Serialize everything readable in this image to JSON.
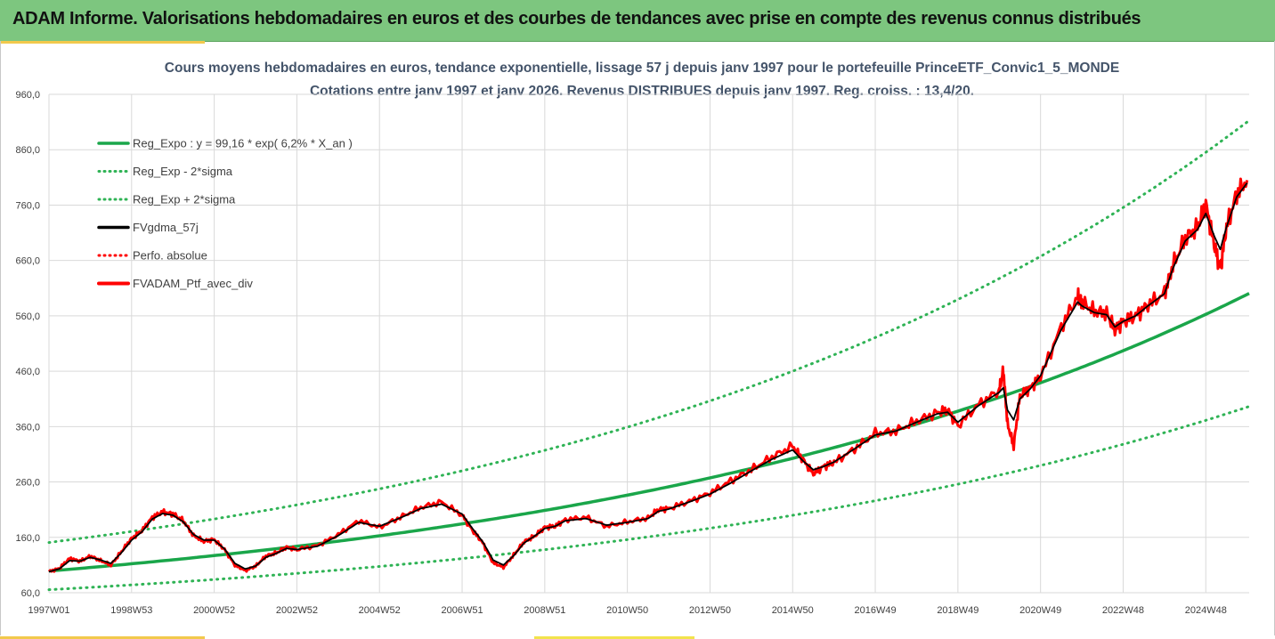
{
  "header": {
    "title": "ADAM Informe. Valorisations hebdomadaires en euros et des courbes de tendances avec prise en compte des revenus connus distribués"
  },
  "colors": {
    "banner": "#7dc67f",
    "trend": "#1aa64a",
    "sigma": "#2fb355",
    "smoothed": "#000000",
    "portfolio": "#ff0000",
    "grid": "#d9d9d9"
  },
  "chart_data": {
    "type": "line",
    "title": "Cours moyens hebdomadaires  en euros, tendance exponentielle, lissage 57 j depuis janv 1997 pour le portefeuille PrinceETF_Convic1_5_MONDE",
    "subtitle": "Cotations entre janv 1997 et janv 2026. Revenus DISTRIBUES depuis janv 1997. Reg. croiss. : 13,4/20.",
    "xlabel": "",
    "ylabel": "",
    "ylim": [
      60,
      960
    ],
    "yticks": [
      "60,0",
      "160,0",
      "260,0",
      "360,0",
      "460,0",
      "560,0",
      "660,0",
      "760,0",
      "860,0",
      "960,0"
    ],
    "ytick_values": [
      60,
      160,
      260,
      360,
      460,
      560,
      660,
      760,
      860,
      960
    ],
    "xlim": [
      1997.0,
      2026.05
    ],
    "xticks": [
      "1997W01",
      "1998W53",
      "2000W52",
      "2002W52",
      "2004W52",
      "2006W51",
      "2008W51",
      "2010W50",
      "2012W50",
      "2014W50",
      "2016W49",
      "2018W49",
      "2020W49",
      "2022W48",
      "2024W48"
    ],
    "xtick_values": [
      1997.0,
      1999.0,
      2001.0,
      2003.0,
      2005.0,
      2007.0,
      2009.0,
      2011.0,
      2013.0,
      2015.0,
      2017.0,
      2019.0,
      2021.0,
      2023.0,
      2025.0
    ],
    "grid": true,
    "legend_position": "top-left",
    "legend": [
      "Reg_Expo : y = 99,16 * exp( 6,2% *  X_an )",
      "Reg_Exp - 2*sigma",
      "Reg_Exp + 2*sigma",
      "FVgdma_57j",
      "Perfo. absolue",
      "FVADAM_Ptf_avec_div"
    ],
    "regression": {
      "a": 99.16,
      "rate": 0.062,
      "lower_factor": 0.66,
      "upper_factor": 1.52
    },
    "series": [
      {
        "name": "FVADAM_Ptf_avec_div",
        "x": [
          1997.0,
          1997.25,
          1997.5,
          1997.75,
          1998.0,
          1998.25,
          1998.5,
          1998.75,
          1999.0,
          1999.25,
          1999.5,
          1999.75,
          2000.0,
          2000.25,
          2000.5,
          2000.75,
          2001.0,
          2001.25,
          2001.5,
          2001.75,
          2002.0,
          2002.25,
          2002.5,
          2002.75,
          2003.0,
          2003.5,
          2004.0,
          2004.5,
          2005.0,
          2005.5,
          2006.0,
          2006.5,
          2007.0,
          2007.25,
          2007.5,
          2007.75,
          2008.0,
          2008.25,
          2008.5,
          2008.75,
          2009.0,
          2009.25,
          2009.5,
          2010.0,
          2010.5,
          2011.0,
          2011.5,
          2011.75,
          2012.0,
          2012.5,
          2013.0,
          2013.5,
          2014.0,
          2014.5,
          2015.0,
          2015.25,
          2015.5,
          2015.75,
          2016.0,
          2016.5,
          2017.0,
          2017.5,
          2018.0,
          2018.5,
          2018.75,
          2019.0,
          2019.5,
          2020.0,
          2020.1,
          2020.2,
          2020.35,
          2020.5,
          2020.75,
          2021.0,
          2021.5,
          2021.9,
          2022.0,
          2022.3,
          2022.6,
          2022.8,
          2023.0,
          2023.3,
          2023.6,
          2024.0,
          2024.2,
          2024.5,
          2024.8,
          2025.0,
          2025.2,
          2025.35,
          2025.5,
          2025.75,
          2026.0
        ],
        "values": [
          98,
          104,
          122,
          117,
          126,
          118,
          110,
          134,
          158,
          172,
          196,
          206,
          202,
          190,
          163,
          153,
          156,
          138,
          110,
          100,
          108,
          126,
          132,
          142,
          138,
          145,
          165,
          190,
          178,
          196,
          214,
          224,
          200,
          173,
          150,
          114,
          106,
          128,
          152,
          162,
          178,
          180,
          192,
          196,
          180,
          188,
          195,
          210,
          212,
          225,
          240,
          262,
          282,
          305,
          325,
          300,
          275,
          288,
          295,
          320,
          348,
          352,
          370,
          385,
          390,
          362,
          400,
          425,
          462,
          365,
          325,
          415,
          430,
          450,
          540,
          595,
          585,
          568,
          565,
          535,
          550,
          560,
          580,
          600,
          650,
          700,
          720,
          762,
          690,
          645,
          720,
          780,
          805
        ]
      },
      {
        "name": "FVgdma_57j",
        "x": [
          1997.0,
          1997.25,
          1997.5,
          1997.75,
          1998.0,
          1998.25,
          1998.5,
          1998.75,
          1999.0,
          1999.25,
          1999.5,
          1999.75,
          2000.0,
          2000.25,
          2000.5,
          2000.75,
          2001.0,
          2001.25,
          2001.5,
          2001.75,
          2002.0,
          2002.25,
          2002.5,
          2002.75,
          2003.0,
          2003.5,
          2004.0,
          2004.5,
          2005.0,
          2005.5,
          2006.0,
          2006.5,
          2007.0,
          2007.25,
          2007.5,
          2007.75,
          2008.0,
          2008.25,
          2008.5,
          2008.75,
          2009.0,
          2009.25,
          2009.5,
          2010.0,
          2010.5,
          2011.0,
          2011.5,
          2011.75,
          2012.0,
          2012.5,
          2013.0,
          2013.5,
          2014.0,
          2014.5,
          2015.0,
          2015.25,
          2015.5,
          2015.75,
          2016.0,
          2016.5,
          2017.0,
          2017.5,
          2018.0,
          2018.5,
          2018.75,
          2019.0,
          2019.5,
          2020.0,
          2020.1,
          2020.2,
          2020.35,
          2020.5,
          2020.75,
          2021.0,
          2021.5,
          2021.9,
          2022.0,
          2022.3,
          2022.6,
          2022.8,
          2023.0,
          2023.3,
          2023.6,
          2024.0,
          2024.2,
          2024.5,
          2024.8,
          2025.0,
          2025.2,
          2025.35,
          2025.5,
          2025.75,
          2026.0
        ],
        "values": [
          98,
          103,
          118,
          117,
          124,
          119,
          113,
          132,
          155,
          170,
          193,
          203,
          200,
          188,
          165,
          155,
          155,
          139,
          113,
          103,
          108,
          124,
          131,
          140,
          138,
          144,
          163,
          187,
          180,
          195,
          212,
          220,
          202,
          176,
          152,
          119,
          110,
          127,
          150,
          162,
          176,
          180,
          190,
          194,
          182,
          187,
          194,
          207,
          211,
          224,
          238,
          258,
          280,
          301,
          318,
          298,
          282,
          288,
          296,
          320,
          345,
          352,
          368,
          383,
          386,
          368,
          398,
          422,
          430,
          390,
          372,
          410,
          428,
          452,
          535,
          585,
          578,
          566,
          562,
          540,
          550,
          560,
          578,
          600,
          645,
          695,
          716,
          745,
          705,
          680,
          720,
          775,
          800
        ]
      },
      {
        "name": "Reg_Expo : y = 99,16 * exp( 6,2% *  X_an )",
        "formula": "99.16 * exp(0.062 * (year - 1997))"
      },
      {
        "name": "Reg_Exp - 2*sigma",
        "formula": "0.66 * trend"
      },
      {
        "name": "Reg_Exp + 2*sigma",
        "formula": "1.52 * trend"
      }
    ]
  }
}
